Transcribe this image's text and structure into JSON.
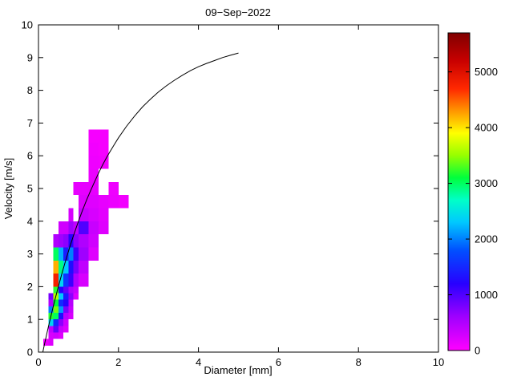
{
  "figure": {
    "background": "#ffffff"
  },
  "chart_data": {
    "type": "heatmap",
    "title": "09−Sep−2022",
    "xlabel": "Diameter [mm]",
    "ylabel": "Velocity [m/s]",
    "xlim": [
      0,
      10
    ],
    "ylim": [
      0,
      10
    ],
    "xticks": [
      0,
      2,
      4,
      6,
      8,
      10
    ],
    "yticks": [
      0,
      1,
      2,
      3,
      4,
      5,
      6,
      7,
      8,
      9,
      10
    ],
    "grid": false,
    "colorbar": {
      "position": "right",
      "ticks": [
        0,
        1000,
        2000,
        3000,
        4000,
        5000
      ],
      "min": 0,
      "max": 5700,
      "colormap_stops": [
        [
          0,
          "#ff00ff"
        ],
        [
          600,
          "#a000ff"
        ],
        [
          1200,
          "#2800ff"
        ],
        [
          1800,
          "#0050ff"
        ],
        [
          2300,
          "#00c8ff"
        ],
        [
          2700,
          "#00ffc8"
        ],
        [
          3100,
          "#00ff3c"
        ],
        [
          3500,
          "#96ff00"
        ],
        [
          3900,
          "#ffff00"
        ],
        [
          4300,
          "#ff9600"
        ],
        [
          4700,
          "#ff2800"
        ],
        [
          5200,
          "#c80000"
        ],
        [
          5700,
          "#800000"
        ]
      ]
    },
    "cells_format": [
      "diameter_left_mm",
      "velocity_bottom_ms",
      "width_mm",
      "height_ms",
      "count"
    ],
    "cells": [
      [
        0.125,
        0.2,
        0.125,
        0.2,
        100
      ],
      [
        0.25,
        0.2,
        0.125,
        0.2,
        200
      ],
      [
        0.25,
        0.4,
        0.125,
        0.2,
        250
      ],
      [
        0.25,
        0.6,
        0.125,
        0.2,
        400
      ],
      [
        0.25,
        0.8,
        0.125,
        0.2,
        2400
      ],
      [
        0.25,
        1.0,
        0.125,
        0.2,
        3200
      ],
      [
        0.25,
        1.2,
        0.125,
        0.2,
        2000
      ],
      [
        0.25,
        1.4,
        0.125,
        0.2,
        500
      ],
      [
        0.25,
        1.6,
        0.125,
        0.2,
        800
      ],
      [
        0.375,
        0.4,
        0.125,
        0.2,
        300
      ],
      [
        0.375,
        0.6,
        0.125,
        0.2,
        900
      ],
      [
        0.375,
        0.8,
        0.125,
        0.2,
        1500
      ],
      [
        0.375,
        1.0,
        0.125,
        0.2,
        3000
      ],
      [
        0.375,
        1.2,
        0.125,
        0.2,
        3400
      ],
      [
        0.375,
        1.4,
        0.125,
        0.2,
        3100
      ],
      [
        0.375,
        1.6,
        0.125,
        0.2,
        3600
      ],
      [
        0.375,
        1.8,
        0.125,
        0.2,
        3200
      ],
      [
        0.375,
        2.0,
        0.125,
        0.4,
        4800
      ],
      [
        0.375,
        2.4,
        0.125,
        0.4,
        4200
      ],
      [
        0.375,
        2.8,
        0.125,
        0.4,
        3000
      ],
      [
        0.375,
        3.2,
        0.125,
        0.4,
        500
      ],
      [
        0.5,
        0.4,
        0.125,
        0.2,
        200
      ],
      [
        0.5,
        0.6,
        0.125,
        0.2,
        350
      ],
      [
        0.5,
        0.8,
        0.125,
        0.2,
        700
      ],
      [
        0.5,
        1.0,
        0.125,
        0.2,
        1300
      ],
      [
        0.5,
        1.2,
        0.125,
        0.2,
        2100
      ],
      [
        0.5,
        1.4,
        0.125,
        0.2,
        1500
      ],
      [
        0.5,
        1.6,
        0.125,
        0.2,
        2300
      ],
      [
        0.5,
        1.8,
        0.125,
        0.2,
        1200
      ],
      [
        0.5,
        2.0,
        0.125,
        0.4,
        2400
      ],
      [
        0.5,
        2.4,
        0.125,
        0.4,
        2900
      ],
      [
        0.5,
        2.8,
        0.125,
        0.4,
        2200
      ],
      [
        0.5,
        3.2,
        0.125,
        0.4,
        600
      ],
      [
        0.5,
        3.6,
        0.125,
        0.4,
        300
      ],
      [
        0.625,
        0.6,
        0.125,
        0.2,
        200
      ],
      [
        0.625,
        0.8,
        0.125,
        0.2,
        300
      ],
      [
        0.625,
        1.0,
        0.125,
        0.2,
        450
      ],
      [
        0.625,
        1.2,
        0.125,
        0.2,
        800
      ],
      [
        0.625,
        1.4,
        0.125,
        0.2,
        1200
      ],
      [
        0.625,
        1.6,
        0.125,
        0.2,
        1400
      ],
      [
        0.625,
        1.8,
        0.125,
        0.2,
        900
      ],
      [
        0.625,
        2.0,
        0.125,
        0.4,
        1600
      ],
      [
        0.625,
        2.4,
        0.125,
        0.4,
        2300
      ],
      [
        0.625,
        2.8,
        0.125,
        0.4,
        1400
      ],
      [
        0.625,
        3.2,
        0.125,
        0.4,
        700
      ],
      [
        0.625,
        3.6,
        0.125,
        0.4,
        300
      ],
      [
        0.75,
        1.0,
        0.125,
        0.2,
        250
      ],
      [
        0.75,
        1.2,
        0.125,
        0.2,
        350
      ],
      [
        0.75,
        1.4,
        0.125,
        0.2,
        450
      ],
      [
        0.75,
        1.6,
        0.125,
        0.2,
        700
      ],
      [
        0.75,
        1.8,
        0.125,
        0.2,
        500
      ],
      [
        0.75,
        2.0,
        0.125,
        0.4,
        1100
      ],
      [
        0.75,
        2.4,
        0.125,
        0.4,
        1300
      ],
      [
        0.75,
        2.8,
        0.125,
        0.4,
        2000
      ],
      [
        0.75,
        3.2,
        0.125,
        0.4,
        1200
      ],
      [
        0.75,
        3.6,
        0.125,
        0.4,
        600
      ],
      [
        0.75,
        4.0,
        0.125,
        0.4,
        250
      ],
      [
        0.875,
        1.6,
        0.125,
        0.2,
        200
      ],
      [
        0.875,
        1.8,
        0.125,
        0.2,
        350
      ],
      [
        0.875,
        2.0,
        0.125,
        0.4,
        500
      ],
      [
        0.875,
        2.4,
        0.125,
        0.4,
        800
      ],
      [
        0.875,
        2.8,
        0.125,
        0.4,
        1100
      ],
      [
        0.875,
        3.2,
        0.125,
        0.4,
        700
      ],
      [
        0.875,
        3.6,
        0.125,
        0.4,
        400
      ],
      [
        0.875,
        4.8,
        0.125,
        0.4,
        150
      ],
      [
        1.0,
        2.0,
        0.25,
        0.4,
        250
      ],
      [
        1.0,
        2.4,
        0.25,
        0.4,
        400
      ],
      [
        1.0,
        2.8,
        0.25,
        0.4,
        600
      ],
      [
        1.0,
        3.2,
        0.25,
        0.4,
        500
      ],
      [
        1.0,
        3.6,
        0.25,
        0.4,
        1000
      ],
      [
        1.0,
        4.0,
        0.25,
        0.4,
        350
      ],
      [
        1.0,
        4.4,
        0.25,
        0.4,
        200
      ],
      [
        1.0,
        4.8,
        0.25,
        0.4,
        150
      ],
      [
        1.25,
        2.8,
        0.25,
        0.4,
        200
      ],
      [
        1.25,
        3.2,
        0.25,
        0.4,
        300
      ],
      [
        1.25,
        3.6,
        0.25,
        0.4,
        350
      ],
      [
        1.25,
        4.0,
        0.25,
        0.4,
        250
      ],
      [
        1.25,
        4.4,
        0.25,
        0.4,
        200
      ],
      [
        1.25,
        4.8,
        0.25,
        0.4,
        150
      ],
      [
        1.25,
        5.2,
        0.25,
        0.4,
        120
      ],
      [
        1.25,
        5.6,
        0.25,
        0.4,
        100
      ],
      [
        1.25,
        6.0,
        0.25,
        0.4,
        80
      ],
      [
        1.25,
        6.4,
        0.25,
        0.4,
        60
      ],
      [
        1.5,
        3.6,
        0.25,
        0.4,
        200
      ],
      [
        1.5,
        4.0,
        0.25,
        0.4,
        180
      ],
      [
        1.5,
        4.4,
        0.25,
        0.4,
        150
      ],
      [
        1.5,
        5.6,
        0.25,
        0.4,
        80
      ],
      [
        1.5,
        6.0,
        0.25,
        0.4,
        60
      ],
      [
        1.5,
        6.4,
        0.25,
        0.4,
        60
      ],
      [
        1.75,
        4.4,
        0.25,
        0.4,
        120
      ],
      [
        1.75,
        4.8,
        0.25,
        0.4,
        100
      ],
      [
        2.0,
        4.4,
        0.25,
        0.4,
        80
      ]
    ],
    "curve": {
      "name": "terminal-velocity-curve",
      "color": "#000000",
      "points": [
        [
          0.11,
          0.01
        ],
        [
          0.15,
          0.24
        ],
        [
          0.2,
          0.52
        ],
        [
          0.25,
          0.79
        ],
        [
          0.3,
          1.05
        ],
        [
          0.4,
          1.55
        ],
        [
          0.5,
          2.02
        ],
        [
          0.6,
          2.46
        ],
        [
          0.7,
          2.88
        ],
        [
          0.8,
          3.28
        ],
        [
          0.9,
          3.65
        ],
        [
          1.0,
          4.0
        ],
        [
          1.1,
          4.33
        ],
        [
          1.2,
          4.64
        ],
        [
          1.3,
          4.93
        ],
        [
          1.4,
          5.2
        ],
        [
          1.5,
          5.46
        ],
        [
          1.6,
          5.71
        ],
        [
          1.7,
          5.94
        ],
        [
          1.8,
          6.15
        ],
        [
          1.9,
          6.35
        ],
        [
          2.0,
          6.55
        ],
        [
          2.2,
          6.9
        ],
        [
          2.4,
          7.21
        ],
        [
          2.6,
          7.49
        ],
        [
          2.8,
          7.73
        ],
        [
          3.0,
          7.95
        ],
        [
          3.2,
          8.14
        ],
        [
          3.4,
          8.31
        ],
        [
          3.6,
          8.46
        ],
        [
          3.8,
          8.6
        ],
        [
          4.0,
          8.72
        ],
        [
          4.2,
          8.82
        ],
        [
          4.4,
          8.91
        ],
        [
          4.6,
          9.0
        ],
        [
          4.8,
          9.07
        ],
        [
          5.0,
          9.14
        ]
      ]
    }
  }
}
